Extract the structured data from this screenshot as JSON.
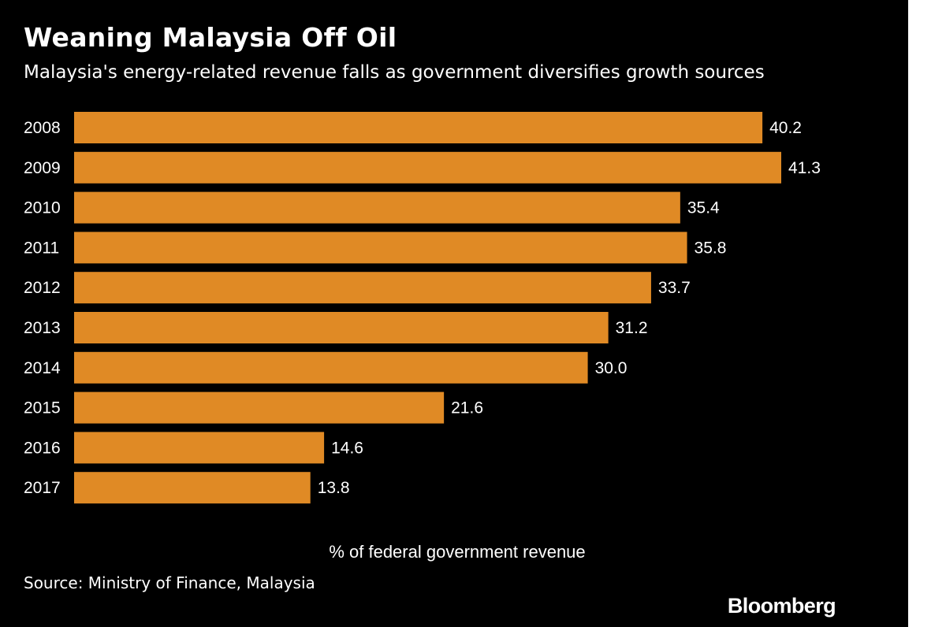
{
  "header": {
    "title": "Weaning Malaysia Off Oil",
    "subtitle": "Malaysia's energy-related revenue falls as government diversifies growth sources"
  },
  "footer": {
    "source": "Source: Ministry of Finance, Malaysia",
    "brand": "Bloomberg"
  },
  "colors": {
    "background": "#000000",
    "bar": "#e08a25",
    "text": "#ffffff"
  },
  "chart_data": {
    "type": "bar",
    "orientation": "horizontal",
    "categories": [
      "2008",
      "2009",
      "2010",
      "2011",
      "2012",
      "2013",
      "2014",
      "2015",
      "2016",
      "2017"
    ],
    "values": [
      40.2,
      41.3,
      35.4,
      35.8,
      33.7,
      31.2,
      30.0,
      21.6,
      14.6,
      13.8
    ],
    "value_labels": [
      "40.2",
      "41.3",
      "35.4",
      "35.8",
      "33.7",
      "31.2",
      "30.0",
      "21.6",
      "14.6",
      "13.8"
    ],
    "xlabel": "% of federal government revenue",
    "ylabel": "",
    "xlim": [
      0,
      41.3
    ],
    "grid": false,
    "legend": "none"
  }
}
